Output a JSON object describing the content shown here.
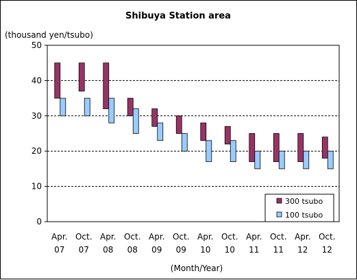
{
  "chart_data": {
    "type": "bar",
    "subtype": "floating-range",
    "title": "Shibuya Station area",
    "ylabel": "(thousand yen/tsubo)",
    "xlabel": "(Month/Year)",
    "ylim": [
      0,
      50
    ],
    "yticks": [
      0,
      10,
      20,
      30,
      40,
      50
    ],
    "grid": "dashed horizontal",
    "legend_position": "bottom-right",
    "categories": [
      [
        "Apr.",
        "07"
      ],
      [
        "Oct.",
        "07"
      ],
      [
        "Apr.",
        "08"
      ],
      [
        "Oct.",
        "08"
      ],
      [
        "Apr.",
        "09"
      ],
      [
        "Oct.",
        "09"
      ],
      [
        "Apr.",
        "10"
      ],
      [
        "Oct.",
        "10"
      ],
      [
        "Apr.",
        "11"
      ],
      [
        "Oct.",
        "11"
      ],
      [
        "Apr.",
        "12"
      ],
      [
        "Oct.",
        "12"
      ]
    ],
    "series": [
      {
        "name": "300 tsubo",
        "color": "#993366",
        "ranges": [
          [
            35,
            45
          ],
          [
            37,
            45
          ],
          [
            32,
            45
          ],
          [
            30,
            35
          ],
          [
            27,
            32
          ],
          [
            25,
            30
          ],
          [
            23,
            28
          ],
          [
            22,
            27
          ],
          [
            17,
            25
          ],
          [
            17,
            25
          ],
          [
            17,
            25
          ],
          [
            18,
            24
          ]
        ]
      },
      {
        "name": "100 tsubo",
        "color": "#99CCFF",
        "ranges": [
          [
            30,
            35
          ],
          [
            30,
            35
          ],
          [
            28,
            35
          ],
          [
            25,
            32
          ],
          [
            23,
            28
          ],
          [
            20,
            25
          ],
          [
            17,
            23
          ],
          [
            17,
            23
          ],
          [
            15,
            20
          ],
          [
            15,
            20
          ],
          [
            15,
            20
          ],
          [
            15,
            20
          ]
        ]
      }
    ]
  }
}
